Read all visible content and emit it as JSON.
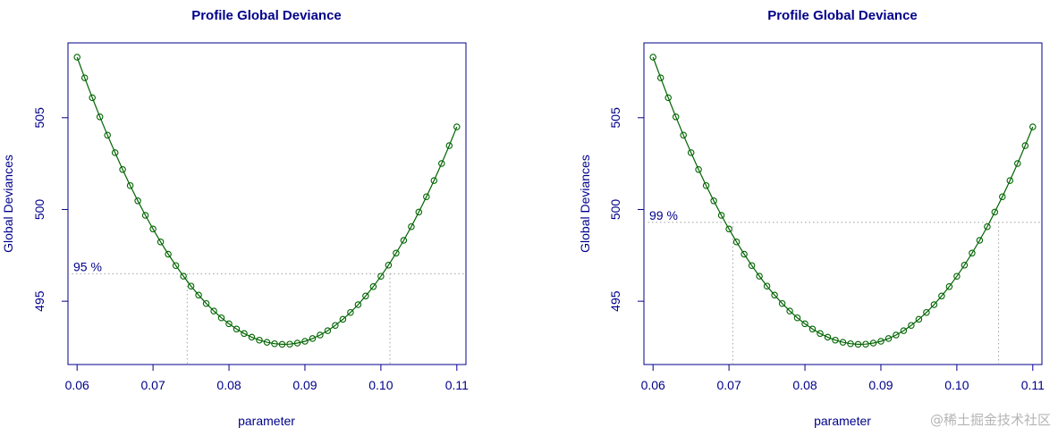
{
  "watermark": "@稀土掘金技术社区",
  "colors": {
    "axis": "#00008b",
    "text": "#00008b",
    "curve": "#006400",
    "reference": "#a0a0a0"
  },
  "chart_data": [
    {
      "type": "line",
      "title": "Profile Global Deviance",
      "xlabel": "parameter",
      "ylabel": "Global Deviances",
      "xlim": [
        0.0588,
        0.1112
      ],
      "ylim": [
        491.55,
        509.08
      ],
      "xticks": [
        0.06,
        0.07,
        0.08,
        0.09,
        0.1,
        0.11
      ],
      "xtick_labels": [
        "0.06",
        "0.07",
        "0.08",
        "0.09",
        "0.10",
        "0.11"
      ],
      "yticks": [
        495,
        500,
        505
      ],
      "ytick_labels": [
        "495",
        "500",
        "505"
      ],
      "curve": {
        "minimum_x": 0.0873,
        "minimum_y": 492.65,
        "slope_left": 21000,
        "slope_right": 23000,
        "start_x": 0.06,
        "end_x": 0.11,
        "points": 51
      },
      "threshold": {
        "y": 496.5,
        "label": "95 %"
      },
      "ci_bounds": [
        0.0745,
        0.1012
      ],
      "marker": "open-circle"
    },
    {
      "type": "line",
      "title": "Profile Global Deviance",
      "xlabel": "parameter",
      "ylabel": "Global Deviances",
      "xlim": [
        0.0588,
        0.1112
      ],
      "ylim": [
        491.55,
        509.08
      ],
      "xticks": [
        0.06,
        0.07,
        0.08,
        0.09,
        0.1,
        0.11
      ],
      "xtick_labels": [
        "0.06",
        "0.07",
        "0.08",
        "0.09",
        "0.10",
        "0.11"
      ],
      "yticks": [
        495,
        500,
        505
      ],
      "ytick_labels": [
        "495",
        "500",
        "505"
      ],
      "curve": {
        "minimum_x": 0.0873,
        "minimum_y": 492.65,
        "slope_left": 21000,
        "slope_right": 23000,
        "start_x": 0.06,
        "end_x": 0.11,
        "points": 51
      },
      "threshold": {
        "y": 499.3,
        "label": "99 %"
      },
      "ci_bounds": [
        0.0705,
        0.1055
      ],
      "marker": "open-circle"
    }
  ]
}
